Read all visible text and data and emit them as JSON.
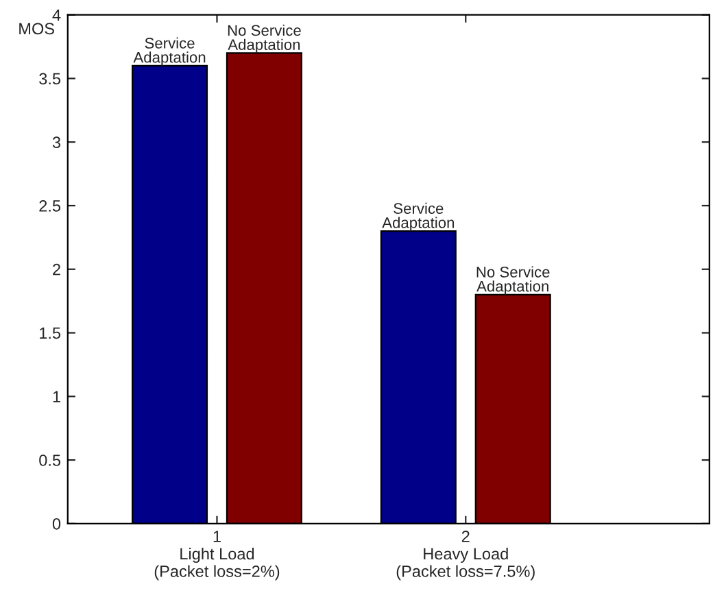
{
  "chart_data": {
    "type": "bar",
    "ylabel": "MOS",
    "categories": [
      "1\nLight Load\n(Packet loss=2%)",
      "2\nHeavy Load\n(Packet loss=7.5%)"
    ],
    "series": [
      {
        "name": "Service\nAdaptation",
        "color": "#000088",
        "values": [
          3.6,
          2.3
        ]
      },
      {
        "name": "No Service\nAdaptation",
        "color": "#800000",
        "values": [
          3.7,
          1.8
        ]
      }
    ],
    "ylim": [
      0,
      4
    ],
    "yticks": [
      0,
      0.5,
      1,
      1.5,
      2,
      2.5,
      3,
      3.5,
      4
    ],
    "grid": false,
    "legend": false
  }
}
